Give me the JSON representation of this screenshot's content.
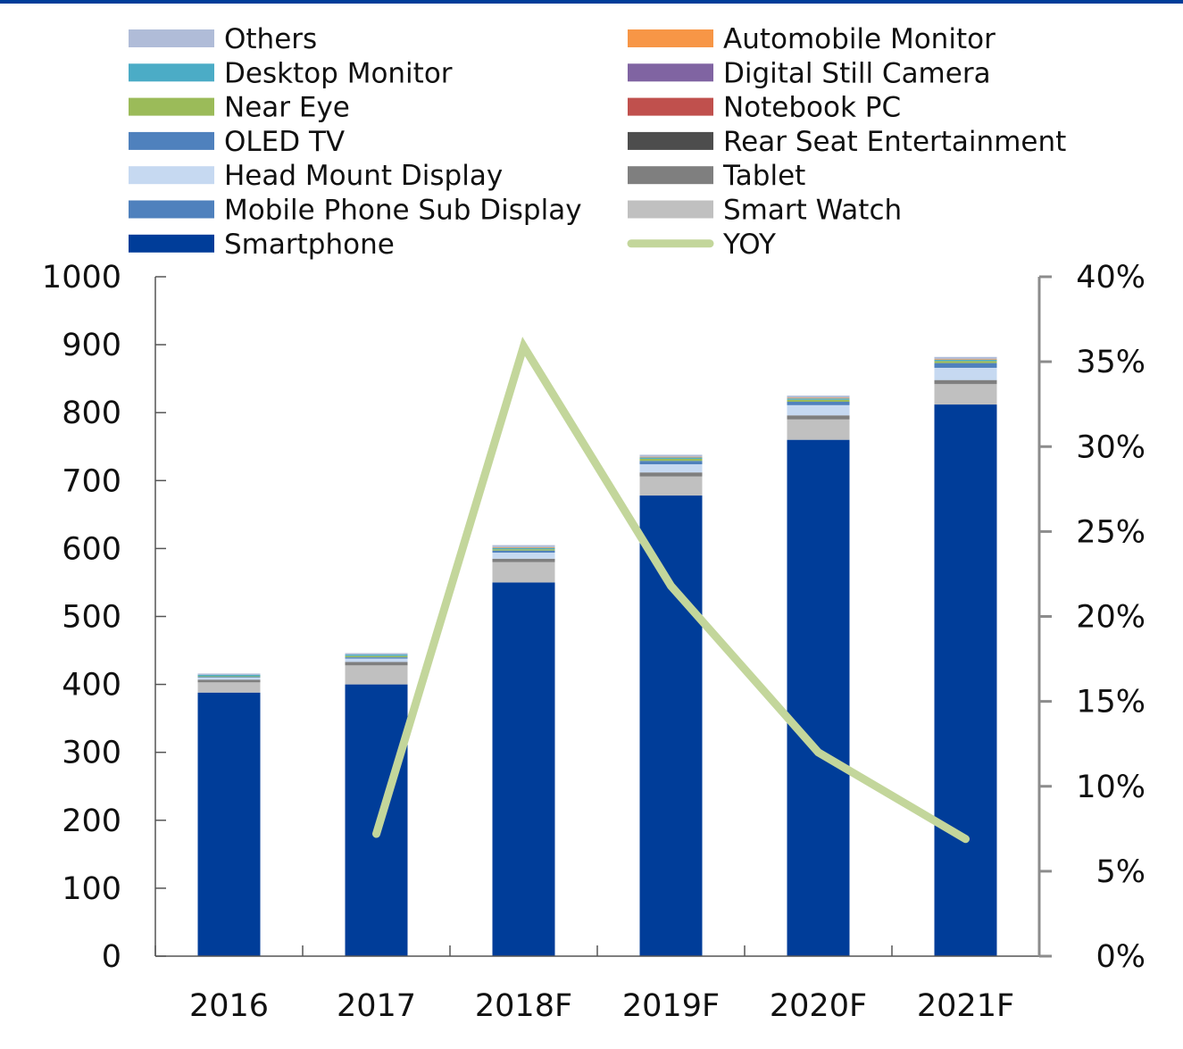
{
  "chart_data": {
    "type": "bar",
    "stacked": true,
    "categories": [
      "2016",
      "2017",
      "2018F",
      "2019F",
      "2020F",
      "2021F"
    ],
    "left_axis": {
      "ylim": [
        0,
        1000
      ],
      "ticks": [
        "0",
        "100",
        "200",
        "300",
        "400",
        "500",
        "600",
        "700",
        "800",
        "900",
        "1000"
      ]
    },
    "right_axis": {
      "ylim": [
        0,
        40
      ],
      "ticks": [
        "0%",
        "5%",
        "10%",
        "15%",
        "20%",
        "25%",
        "30%",
        "35%",
        "40%"
      ]
    },
    "series": [
      {
        "name": "Smartphone",
        "color": "#003d99",
        "values": [
          388,
          400,
          550,
          678,
          760,
          812
        ]
      },
      {
        "name": "Smart Watch",
        "color": "#c0c0c0",
        "values": [
          15,
          28,
          30,
          28,
          30,
          30
        ]
      },
      {
        "name": "Tablet",
        "color": "#7f7f7f",
        "values": [
          4,
          5,
          5,
          6,
          6,
          6
        ]
      },
      {
        "name": "Rear Seat Entertainment",
        "color": "#4d4d4d",
        "values": [
          0,
          0,
          0,
          0,
          0,
          0
        ]
      },
      {
        "name": "Mobile Phone Sub Display",
        "color": "#4f81bd",
        "values": [
          0,
          0,
          0,
          0,
          0,
          0
        ]
      },
      {
        "name": "Head Mount Display",
        "color": "#c6d9f1",
        "values": [
          3,
          5,
          9,
          12,
          15,
          18
        ]
      },
      {
        "name": "Notebook PC",
        "color": "#c0504d",
        "values": [
          0,
          0,
          0,
          0,
          0,
          0
        ]
      },
      {
        "name": "OLED TV",
        "color": "#4f81bd",
        "values": [
          1,
          2,
          3,
          5,
          5,
          7
        ]
      },
      {
        "name": "Digital Still Camera",
        "color": "#8064a2",
        "values": [
          0,
          0,
          0,
          0,
          0,
          0
        ]
      },
      {
        "name": "Near Eye",
        "color": "#9bbb59",
        "values": [
          1,
          2,
          2,
          3,
          3,
          3
        ]
      },
      {
        "name": "Desktop Monitor",
        "color": "#4bacc6",
        "values": [
          2,
          2,
          2,
          2,
          2,
          2
        ]
      },
      {
        "name": "Automobile Monitor",
        "color": "#f79646",
        "values": [
          0,
          0,
          1,
          1,
          1,
          1
        ]
      },
      {
        "name": "Others",
        "color": "#b0bcd8",
        "values": [
          2,
          2,
          3,
          3,
          3,
          3
        ]
      }
    ],
    "line_series": {
      "name": "YOY",
      "color": "#c3d69b",
      "axis": "right",
      "values": [
        null,
        7.2,
        35.9,
        21.8,
        12.0,
        6.9
      ]
    },
    "legend": {
      "position": "top",
      "left_column": [
        "Others",
        "Desktop Monitor",
        "Near Eye",
        "OLED TV",
        "Head Mount Display",
        "Mobile Phone Sub Display",
        "Smartphone"
      ],
      "right_column": [
        "Automobile Monitor",
        "Digital Still Camera",
        "Notebook PC",
        "Rear Seat Entertainment",
        "Tablet",
        "Smart Watch",
        "YOY"
      ]
    },
    "colors": {
      "top_rule": "#003d99",
      "axis_left": "#555555",
      "axis_right": "#8c8c8c"
    }
  }
}
